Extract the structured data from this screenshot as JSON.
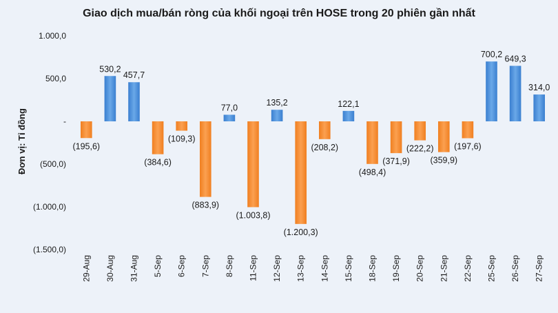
{
  "chart_data": {
    "type": "bar",
    "title": "Giao dịch mua/bán ròng của khối ngoại trên HOSE trong 20 phiên gần nhất",
    "xlabel": "",
    "ylabel": "Đơn vị: Tỉ đồng",
    "ylim": [
      -1500,
      1000
    ],
    "yticks": [
      1000,
      500,
      0,
      -500,
      -1000,
      -1500
    ],
    "ytick_labels": [
      "1.000,0",
      "500,0",
      "-",
      "(500,0)",
      "(1.000,0)",
      "(1.500,0)"
    ],
    "grid": false,
    "categories": [
      "29-Aug",
      "30-Aug",
      "31-Aug",
      "5-Sep",
      "6-Sep",
      "7-Sep",
      "8-Sep",
      "11-Sep",
      "12-Sep",
      "13-Sep",
      "14-Sep",
      "15-Sep",
      "18-Sep",
      "19-Sep",
      "20-Sep",
      "21-Sep",
      "22-Sep",
      "25-Sep",
      "26-Sep",
      "27-Sep"
    ],
    "values": [
      -195.6,
      530.2,
      457.7,
      -384.6,
      -109.3,
      -883.9,
      77.0,
      -1003.8,
      135.2,
      -1200.3,
      -208.2,
      122.1,
      -498.4,
      -371.9,
      -222.2,
      -359.9,
      -197.6,
      700.2,
      649.3,
      314.0
    ],
    "value_labels": [
      "(195,6)",
      "530,2",
      "457,7",
      "(384,6)",
      "(109,3)",
      "(883,9)",
      "77,0",
      "(1.003,8)",
      "135,2",
      "(1.200,3)",
      "(208,2)",
      "122,1",
      "(498,4)",
      "(371,9)",
      "(222,2)",
      "(359,9)",
      "(197,6)",
      "700,2",
      "649,3",
      "314,0"
    ],
    "colors": {
      "positive": "#4a90d9",
      "negative": "#f58a2a",
      "background": "#edf2f9"
    }
  }
}
